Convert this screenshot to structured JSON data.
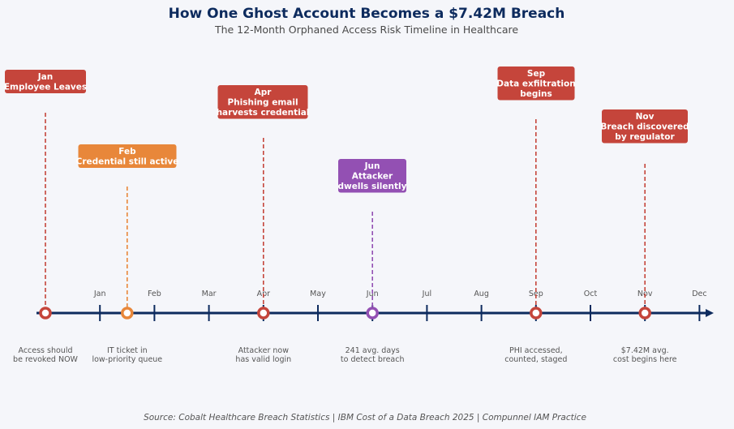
{
  "title": "How One Ghost Account Becomes a $7.42M Breach",
  "subtitle": "The 12-Month Orphaned Access Risk Timeline in Healthcare",
  "source": "Source: Cobalt Healthcare Breach Statistics | IBM Cost of a Data Breach 2025 | Compunnel IAM Practice",
  "colors": {
    "background": "#f5f6fa",
    "axis": "#0d2b5e",
    "red": "#c5453b",
    "orange": "#e8873a",
    "purple": "#9350b3"
  },
  "months": [
    "Jan",
    "Feb",
    "Mar",
    "Apr",
    "May",
    "Jun",
    "Jul",
    "Aug",
    "Sep",
    "Oct",
    "Nov",
    "Dec"
  ],
  "events": [
    {
      "month": "Jan",
      "lines": [
        "Jan",
        "Employee Leaves"
      ],
      "note": [
        "Access should",
        "be revoked NOW"
      ],
      "color": "#c5453b",
      "position": 0
    },
    {
      "month": "Feb",
      "lines": [
        "Feb",
        "Credential still active"
      ],
      "note": [
        "IT ticket in",
        "low-priority queue"
      ],
      "color": "#e8873a",
      "position": 1.5
    },
    {
      "month": "Apr",
      "lines": [
        "Apr",
        "Phishing email",
        "harvests credential"
      ],
      "note": [
        "Attacker now",
        "has valid login"
      ],
      "color": "#c5453b",
      "position": 4
    },
    {
      "month": "Jun",
      "lines": [
        "Jun",
        "Attacker",
        "dwells silently"
      ],
      "note": [
        "241 avg. days",
        "to detect breach"
      ],
      "color": "#9350b3",
      "position": 6
    },
    {
      "month": "Sep",
      "lines": [
        "Sep",
        "Data exfiltration",
        "begins"
      ],
      "note": [
        "PHI accessed,",
        "counted, staged"
      ],
      "color": "#c5453b",
      "position": 9
    },
    {
      "month": "Nov",
      "lines": [
        "Nov",
        "Breach discovered",
        "by regulator"
      ],
      "note": [
        "$7.42M avg.",
        "cost begins here"
      ],
      "color": "#c5453b",
      "position": 11
    }
  ]
}
